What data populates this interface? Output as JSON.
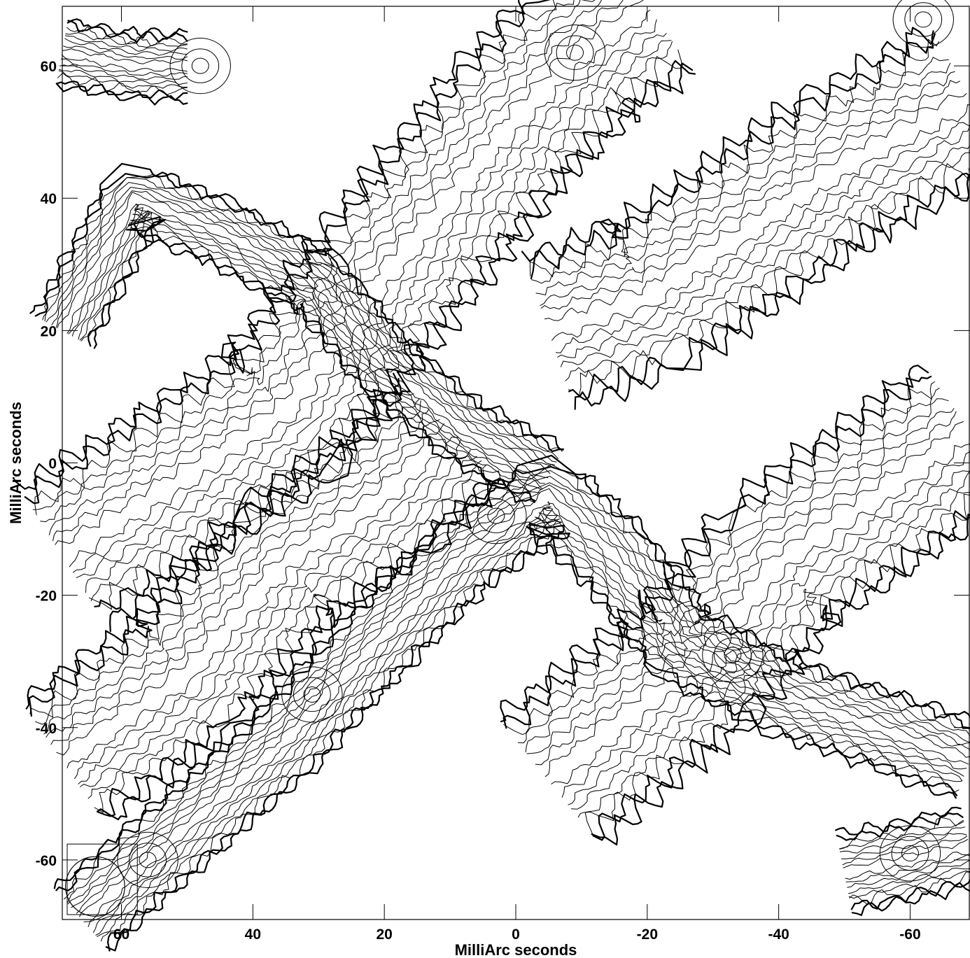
{
  "chart_data": {
    "type": "contour",
    "xlabel": "MilliArc seconds",
    "ylabel": "MilliArc seconds",
    "xlim": [
      69,
      -69
    ],
    "ylim": [
      -69,
      69
    ],
    "x_ticks": [
      60,
      40,
      20,
      0,
      -20,
      -40,
      -60
    ],
    "y_ticks": [
      60,
      40,
      20,
      0,
      -20,
      -40,
      -60
    ],
    "grid": false,
    "legend": "none",
    "contour_levels": 8,
    "beam": {
      "x": 64,
      "y": -64,
      "major_mas": 4.5,
      "minor_mas": 4.5
    },
    "features": [
      {
        "name": "main diagonal ridge",
        "centerline": [
          [
            66,
            -69
          ],
          [
            50,
            -55
          ],
          [
            35,
            -42
          ],
          [
            22,
            -28
          ],
          [
            8,
            -14
          ],
          [
            -5,
            -5
          ],
          [
            -15,
            -14
          ],
          [
            -25,
            -27
          ],
          [
            -40,
            -35
          ],
          [
            -55,
            -40
          ],
          [
            -69,
            -45
          ]
        ],
        "half_width": 6
      },
      {
        "name": "upper-left to center ridge",
        "centerline": [
          [
            69,
            20
          ],
          [
            58,
            40
          ],
          [
            45,
            35
          ],
          [
            30,
            27
          ],
          [
            20,
            15
          ],
          [
            8,
            5
          ],
          [
            -5,
            -2
          ]
        ],
        "half_width": 5
      },
      {
        "name": "upper band",
        "centerline": [
          [
            69,
            -14
          ],
          [
            50,
            -2
          ],
          [
            35,
            8
          ],
          [
            20,
            28
          ],
          [
            10,
            40
          ],
          [
            0,
            52
          ],
          [
            -10,
            62
          ],
          [
            -20,
            69
          ]
        ],
        "half_width": 12
      },
      {
        "name": "right-center band",
        "centerline": [
          [
            -5,
            20
          ],
          [
            -20,
            25
          ],
          [
            -35,
            35
          ],
          [
            -50,
            45
          ],
          [
            -69,
            55
          ]
        ],
        "half_width": 12
      },
      {
        "name": "lower-left band",
        "centerline": [
          [
            69,
            -45
          ],
          [
            50,
            -32
          ],
          [
            35,
            -15
          ],
          [
            20,
            -5
          ],
          [
            10,
            5
          ]
        ],
        "half_width": 11
      },
      {
        "name": "lower-right band",
        "centerline": [
          [
            -5,
            -48
          ],
          [
            -15,
            -40
          ],
          [
            -28,
            -30
          ],
          [
            -40,
            -15
          ],
          [
            -55,
            -5
          ],
          [
            -69,
            5
          ]
        ],
        "half_width": 12
      },
      {
        "name": "upper-left lobe",
        "centerline": [
          [
            69,
            62
          ],
          [
            58,
            60
          ],
          [
            50,
            60
          ]
        ],
        "half_width": 5
      },
      {
        "name": "lower-right lobe",
        "centerline": [
          [
            -50,
            -62
          ],
          [
            -60,
            -60
          ],
          [
            -69,
            -58
          ]
        ],
        "half_width": 6
      }
    ],
    "peaks": [
      [
        48,
        60
      ],
      [
        -9,
        62
      ],
      [
        -62,
        67
      ],
      [
        -60,
        -59
      ],
      [
        31,
        -35
      ],
      [
        3,
        -8
      ],
      [
        -33,
        -29
      ],
      [
        56,
        -60
      ]
    ]
  }
}
